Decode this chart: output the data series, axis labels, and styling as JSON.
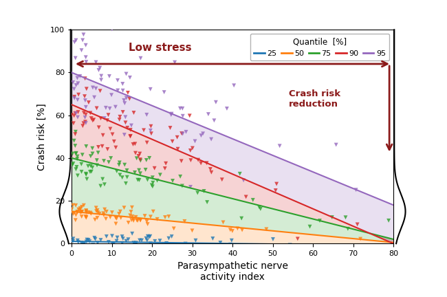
{
  "quantiles": [
    25,
    50,
    75,
    90,
    95
  ],
  "colors": [
    "#1f77b4",
    "#ff7f0e",
    "#2ca02c",
    "#d62728",
    "#9467bd"
  ],
  "line_start": [
    1.0,
    15.0,
    40.0,
    65.0,
    80.0
  ],
  "line_end": [
    -1.0,
    0.5,
    2.0,
    0.0,
    18.0
  ],
  "x_range": [
    0,
    80
  ],
  "y_range": [
    0,
    100
  ],
  "xlabel": "Parasympathetic nerve\nactivity index",
  "ylabel": "Crash risk [%]",
  "legend_title": "Quantile  [%]",
  "low_stress_text": "Low stress",
  "crash_risk_text": "Crash risk\nreduction",
  "arrow_color": "#8b1a1a",
  "band_alpha": 0.2,
  "scatter_alpha": 0.8,
  "scatter_size": 18,
  "n_scatter": 80,
  "yticks": [
    0,
    20,
    40,
    60,
    80,
    100
  ],
  "xticks": [
    0,
    10,
    20,
    30,
    40,
    50,
    60,
    70,
    80
  ],
  "figsize": [
    6.5,
    4.32
  ],
  "dpi": 100
}
